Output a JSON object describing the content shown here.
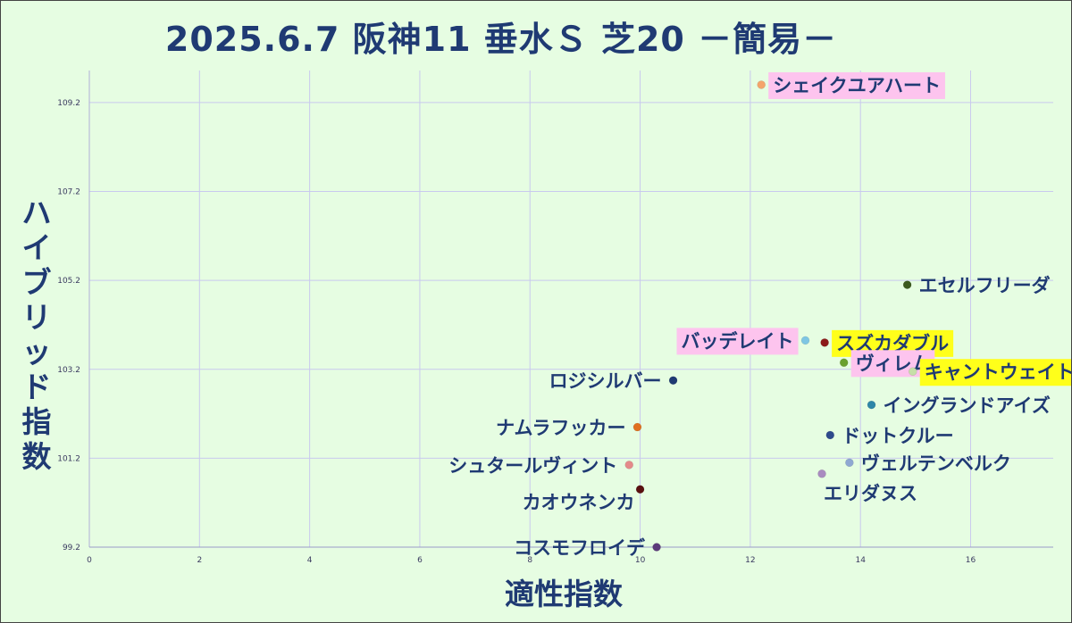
{
  "chart_data": {
    "type": "scatter",
    "title": "2025.6.7 阪神11 垂水Ｓ 芝20 －簡易－",
    "xlabel": "適性指数",
    "ylabel": "ハイブリッド指数",
    "xlim": [
      0,
      17.5
    ],
    "ylim": [
      99.2,
      109.8
    ],
    "xticks": [
      "0",
      "2",
      "4",
      "6",
      "8",
      "10",
      "12",
      "14",
      "16"
    ],
    "yticks": [
      "99.2",
      "101.2",
      "103.2",
      "105.2",
      "107.2",
      "109.2"
    ],
    "grid": true,
    "points": [
      {
        "label": "シェイクユアハート",
        "x": 12.2,
        "y": 109.6,
        "color": "#f4a46b",
        "highlight": "#fdc4ee",
        "side": "right"
      },
      {
        "label": "エセルフリーダ",
        "x": 14.85,
        "y": 105.1,
        "color": "#3c5a1e",
        "highlight": "",
        "side": "right"
      },
      {
        "label": "バッデレイト",
        "x": 13.0,
        "y": 103.85,
        "color": "#7ec6e3",
        "highlight": "#fdc4ee",
        "side": "left"
      },
      {
        "label": "スズカダブル",
        "x": 13.35,
        "y": 103.8,
        "color": "#8c1a1a",
        "highlight": "#ffff1a",
        "side": "right"
      },
      {
        "label": "ヴィレム",
        "x": 13.7,
        "y": 103.35,
        "color": "#6aa12f",
        "highlight": "#fdc4ee",
        "side": "right"
      },
      {
        "label": "キャントウェイト",
        "x": 14.95,
        "y": 103.15,
        "color": "#c6dfa8",
        "highlight": "#ffff1a",
        "side": "right"
      },
      {
        "label": "ロジシルバー",
        "x": 10.6,
        "y": 102.95,
        "color": "#1f3a73",
        "highlight": "",
        "side": "left"
      },
      {
        "label": "イングランドアイズ",
        "x": 14.2,
        "y": 102.4,
        "color": "#2e86a8",
        "highlight": "",
        "side": "right"
      },
      {
        "label": "ナムラフッカー",
        "x": 9.95,
        "y": 101.9,
        "color": "#e07020",
        "highlight": "",
        "side": "left"
      },
      {
        "label": "ドットクルー",
        "x": 13.45,
        "y": 101.72,
        "color": "#2e4a8c",
        "highlight": "",
        "side": "right"
      },
      {
        "label": "シュタールヴィント",
        "x": 9.8,
        "y": 101.05,
        "color": "#e48a8a",
        "highlight": "",
        "side": "left"
      },
      {
        "label": "ヴェルテンベルク",
        "x": 13.8,
        "y": 101.1,
        "color": "#8fa8d2",
        "highlight": "",
        "side": "right"
      },
      {
        "label": "エリダヌス",
        "x": 13.3,
        "y": 100.85,
        "color": "#a98bc0",
        "highlight": "",
        "side": "below"
      },
      {
        "label": "カオウネンカ",
        "x": 10.0,
        "y": 100.5,
        "color": "#5a1010",
        "highlight": "",
        "side": "below-left"
      },
      {
        "label": "コスモフロイデ",
        "x": 10.3,
        "y": 99.2,
        "color": "#5c3a7a",
        "highlight": "",
        "side": "left"
      }
    ]
  }
}
